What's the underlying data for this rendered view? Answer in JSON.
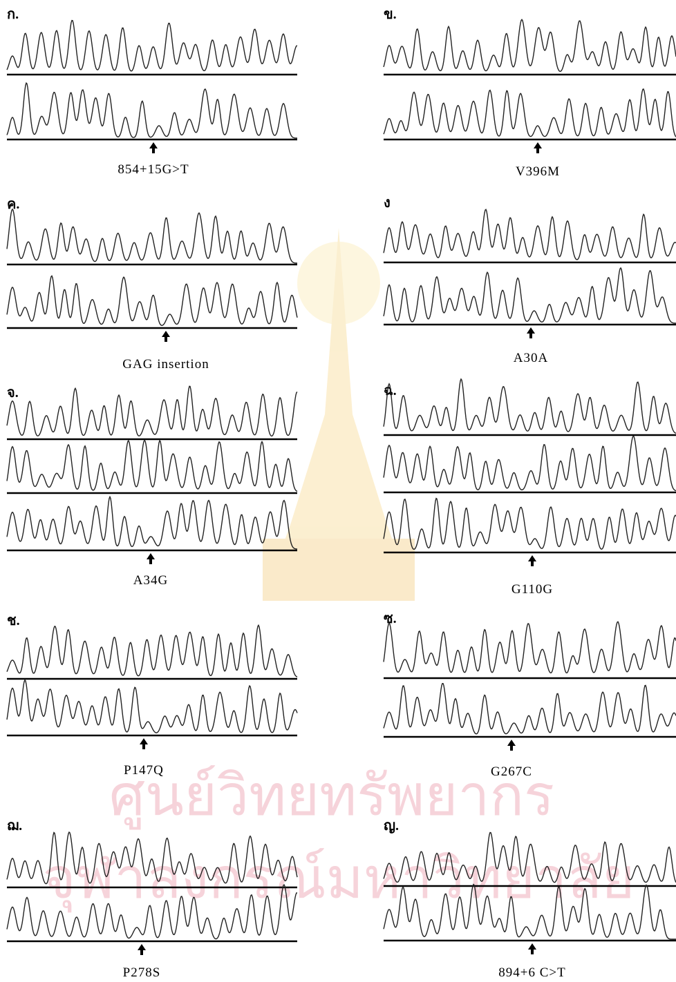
{
  "panels": [
    {
      "label": "ก.",
      "mutation": "854+15G>T"
    },
    {
      "label": "ข.",
      "mutation": "V396M"
    },
    {
      "label": "ค.",
      "mutation": "GAG insertion"
    },
    {
      "label": "ง",
      "mutation": "A30A"
    },
    {
      "label": "จ.",
      "mutation": "A34G"
    },
    {
      "label": "ฉ.",
      "mutation": "G110G"
    },
    {
      "label": "ช.",
      "mutation": "P147Q"
    },
    {
      "label": "ซ.",
      "mutation": "G267C"
    },
    {
      "label": "ฌ.",
      "mutation": "P278S"
    },
    {
      "label": "ญ.",
      "mutation": "894+6 C>T"
    }
  ],
  "watermark": [
    "ศูนย์วิทยทรัพยากร",
    "จุฬาลงกรณ์มหาวิทยาลัย"
  ]
}
